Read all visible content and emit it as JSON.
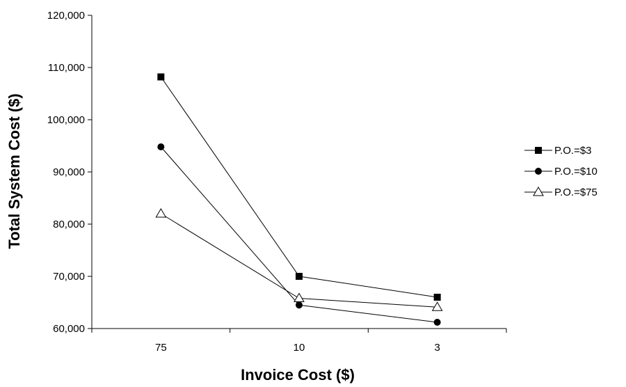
{
  "chart_data": {
    "type": "line",
    "title": "",
    "xlabel": "Invoice Cost ($)",
    "ylabel": "Total System Cost ($)",
    "categories": [
      "75",
      "10",
      "3"
    ],
    "ylim": [
      60000,
      120000
    ],
    "yticks": [
      60000,
      70000,
      80000,
      90000,
      100000,
      110000,
      120000
    ],
    "ytick_labels": [
      "60,000",
      "70,000",
      "80,000",
      "90,000",
      "100,000",
      "110,000",
      "120,000"
    ],
    "grid": false,
    "legend_position": "right",
    "series": [
      {
        "name": "P.O.=$3",
        "marker": "square",
        "values": [
          108200,
          70000,
          66000
        ]
      },
      {
        "name": "P.O.=$10",
        "marker": "circle",
        "values": [
          94800,
          64500,
          61200
        ]
      },
      {
        "name": "P.O.=$75",
        "marker": "triangle-open",
        "values": [
          82000,
          65800,
          64100
        ]
      }
    ],
    "colors": {
      "line": "#000000",
      "background": "#ffffff"
    }
  }
}
